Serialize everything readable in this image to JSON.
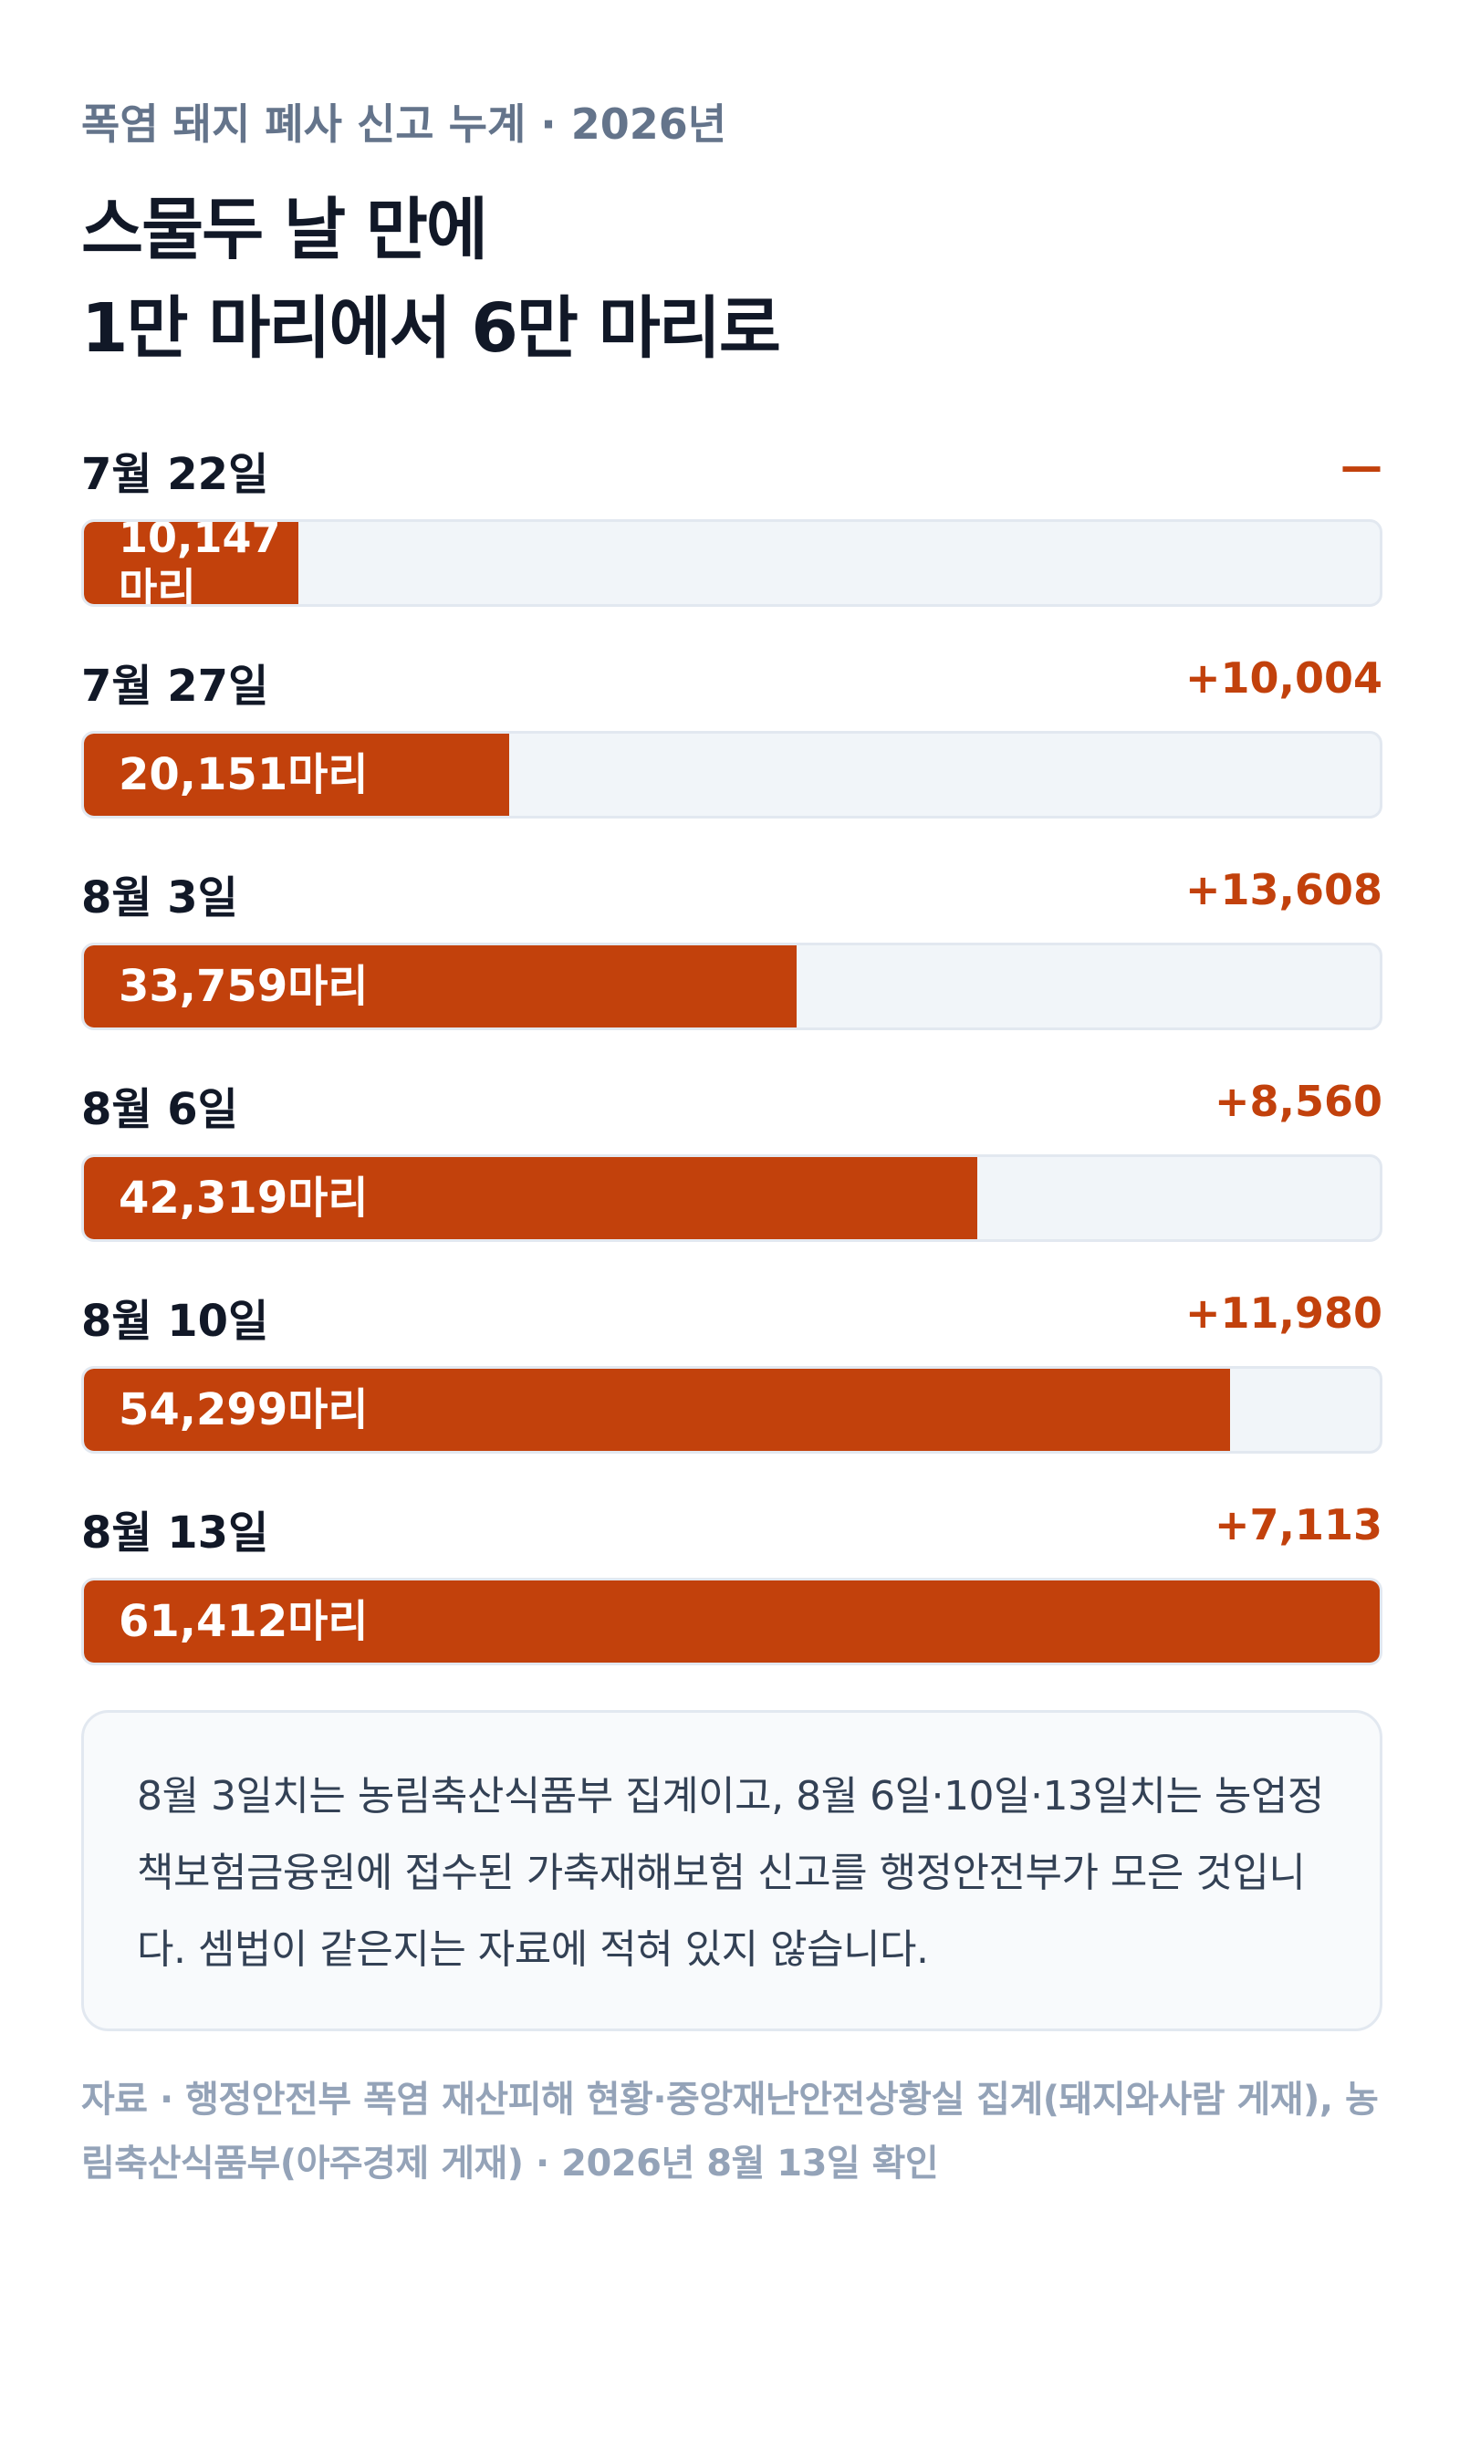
{
  "header": {
    "kicker": "폭염 돼지 폐사 신고 누계 · 2026년",
    "title_line1": "스물두 날 만에",
    "title_line2": "1만 마리에서 6만 마리로"
  },
  "chart_data": {
    "type": "bar",
    "orientation": "horizontal",
    "unit": "마리",
    "xlim": [
      0,
      61412
    ],
    "categories": [
      "7월 22일",
      "7월 27일",
      "8월 3일",
      "8월 6일",
      "8월 10일",
      "8월 13일"
    ],
    "values": [
      10147,
      20151,
      33759,
      42319,
      54299,
      61412
    ],
    "value_labels": [
      "10,147마리",
      "20,151마리",
      "33,759마리",
      "42,319마리",
      "54,299마리",
      "61,412마리"
    ],
    "deltas": [
      "—",
      "+10,004",
      "+13,608",
      "+8,560",
      "+11,980",
      "+7,113"
    ]
  },
  "note": {
    "text": "8월 3일치는 농림축산식품부 집계이고, 8월 6일·10일·13일치는 농업정책보험금융원에 접수된 가축재해보험 신고를 행정안전부가 모은 것입니다. 셈법이 같은지는 자료에 적혀 있지 않습니다."
  },
  "source": {
    "text": "자료 · 행정안전부 폭염 재산피해 현황·중앙재난안전상황실 집계(돼지와사람 게재), 농림축산식품부(아주경제 게재) · 2026년 8월 13일 확인"
  },
  "colors": {
    "accent": "#c2410c",
    "track": "#f1f5f9",
    "track_border": "#e2e8f0",
    "muted": "#64748b"
  }
}
